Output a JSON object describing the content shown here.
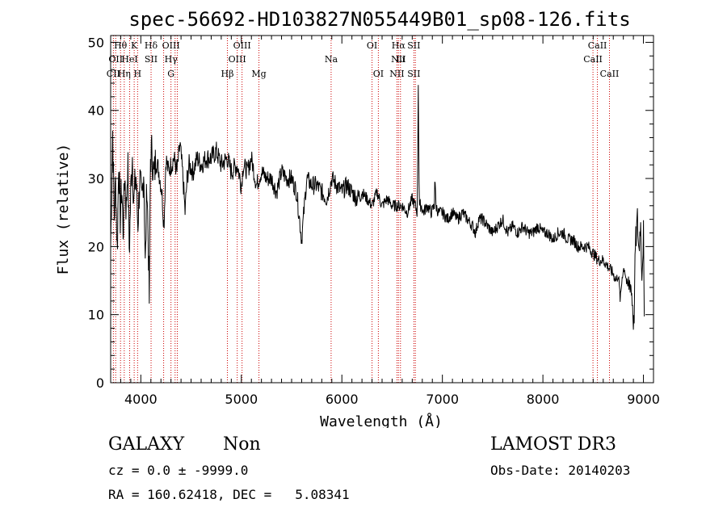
{
  "chart_data": {
    "type": "line",
    "title": "spec-56692-HD103827N055449B01_sp08-126.fits",
    "xlabel": "Wavelength (Å)",
    "ylabel": "Flux (relative)",
    "xlim": [
      3700,
      9100
    ],
    "ylim": [
      0,
      51
    ],
    "xticks": [
      4000,
      5000,
      6000,
      7000,
      8000,
      9000
    ],
    "yticks": [
      0,
      10,
      20,
      30,
      40,
      50
    ],
    "grid": false,
    "line_color": "#000000",
    "marker_color": "#cc0000",
    "series": [
      {
        "name": "spectrum",
        "anchors": [
          [
            3700,
            20
          ],
          [
            3720,
            37
          ],
          [
            3735,
            24
          ],
          [
            3750,
            30
          ],
          [
            3765,
            19
          ],
          [
            3780,
            33
          ],
          [
            3795,
            24
          ],
          [
            3810,
            29
          ],
          [
            3825,
            22
          ],
          [
            3840,
            31
          ],
          [
            3855,
            25
          ],
          [
            3870,
            33
          ],
          [
            3885,
            19
          ],
          [
            3900,
            28
          ],
          [
            3915,
            34
          ],
          [
            3930,
            26
          ],
          [
            3950,
            31
          ],
          [
            3970,
            23
          ],
          [
            3990,
            30
          ],
          [
            4010,
            26
          ],
          [
            4030,
            32
          ],
          [
            4045,
            16
          ],
          [
            4060,
            30
          ],
          [
            4075,
            20
          ],
          [
            4085,
            11
          ],
          [
            4095,
            33
          ],
          [
            4110,
            34
          ],
          [
            4130,
            30
          ],
          [
            4150,
            33
          ],
          [
            4180,
            31
          ],
          [
            4210,
            28
          ],
          [
            4230,
            23
          ],
          [
            4250,
            33
          ],
          [
            4275,
            31
          ],
          [
            4300,
            32
          ],
          [
            4330,
            33
          ],
          [
            4360,
            31
          ],
          [
            4390,
            35
          ],
          [
            4420,
            30
          ],
          [
            4440,
            25
          ],
          [
            4460,
            30
          ],
          [
            4480,
            32
          ],
          [
            4520,
            31
          ],
          [
            4560,
            33
          ],
          [
            4600,
            32
          ],
          [
            4650,
            33
          ],
          [
            4700,
            33
          ],
          [
            4750,
            34
          ],
          [
            4800,
            32
          ],
          [
            4860,
            33
          ],
          [
            4900,
            31
          ],
          [
            4960,
            32
          ],
          [
            5000,
            29
          ],
          [
            5020,
            32
          ],
          [
            5060,
            31
          ],
          [
            5100,
            33
          ],
          [
            5150,
            29
          ],
          [
            5200,
            31
          ],
          [
            5250,
            30
          ],
          [
            5300,
            30
          ],
          [
            5350,
            28
          ],
          [
            5400,
            31
          ],
          [
            5450,
            30
          ],
          [
            5500,
            30
          ],
          [
            5550,
            28
          ],
          [
            5600,
            21
          ],
          [
            5650,
            30
          ],
          [
            5700,
            29
          ],
          [
            5750,
            29
          ],
          [
            5800,
            28
          ],
          [
            5850,
            27
          ],
          [
            5900,
            30
          ],
          [
            5950,
            29
          ],
          [
            6000,
            28
          ],
          [
            6050,
            29
          ],
          [
            6100,
            28
          ],
          [
            6150,
            27
          ],
          [
            6200,
            28
          ],
          [
            6250,
            27
          ],
          [
            6300,
            26
          ],
          [
            6350,
            28
          ],
          [
            6400,
            26
          ],
          [
            6450,
            27
          ],
          [
            6500,
            26
          ],
          [
            6550,
            26
          ],
          [
            6600,
            26
          ],
          [
            6650,
            25
          ],
          [
            6700,
            27
          ],
          [
            6730,
            26
          ],
          [
            6750,
            25
          ],
          [
            6760,
            44
          ],
          [
            6770,
            26
          ],
          [
            6790,
            26
          ],
          [
            6810,
            25
          ],
          [
            6850,
            26
          ],
          [
            6890,
            25
          ],
          [
            6920,
            26
          ],
          [
            6925,
            31
          ],
          [
            6935,
            26
          ],
          [
            6960,
            25
          ],
          [
            7000,
            25
          ],
          [
            7050,
            24
          ],
          [
            7100,
            25
          ],
          [
            7150,
            24
          ],
          [
            7200,
            25
          ],
          [
            7250,
            24
          ],
          [
            7300,
            23
          ],
          [
            7330,
            22
          ],
          [
            7360,
            24
          ],
          [
            7400,
            24
          ],
          [
            7450,
            23
          ],
          [
            7500,
            22
          ],
          [
            7550,
            23
          ],
          [
            7600,
            24
          ],
          [
            7650,
            22
          ],
          [
            7700,
            23
          ],
          [
            7750,
            22
          ],
          [
            7800,
            23
          ],
          [
            7850,
            22
          ],
          [
            7900,
            22
          ],
          [
            7950,
            23
          ],
          [
            8000,
            22
          ],
          [
            8050,
            22
          ],
          [
            8100,
            21
          ],
          [
            8150,
            22
          ],
          [
            8200,
            22
          ],
          [
            8250,
            21
          ],
          [
            8300,
            21
          ],
          [
            8350,
            20
          ],
          [
            8400,
            20
          ],
          [
            8450,
            20
          ],
          [
            8500,
            19
          ],
          [
            8550,
            18
          ],
          [
            8600,
            18
          ],
          [
            8650,
            17
          ],
          [
            8700,
            16
          ],
          [
            8730,
            15
          ],
          [
            8750,
            16
          ],
          [
            8770,
            12
          ],
          [
            8790,
            16
          ],
          [
            8810,
            17
          ],
          [
            8840,
            14
          ],
          [
            8870,
            15
          ],
          [
            8890,
            12
          ],
          [
            8905,
            8
          ],
          [
            8920,
            20
          ],
          [
            8940,
            24
          ],
          [
            8955,
            19
          ],
          [
            8970,
            24
          ],
          [
            8985,
            16
          ],
          [
            9000,
            22
          ],
          [
            9010,
            4
          ]
        ]
      }
    ],
    "lines": [
      {
        "wl": 3727,
        "labels": [
          [
            "CII",
            3
          ]
        ]
      },
      {
        "wl": 3750,
        "labels": [
          [
            "OII",
            2
          ]
        ]
      },
      {
        "wl": 3798,
        "labels": [
          [
            "Hθ",
            1
          ]
        ]
      },
      {
        "wl": 3835,
        "labels": [
          [
            "Hη",
            3
          ]
        ]
      },
      {
        "wl": 3889,
        "labels": [
          [
            "HeI",
            2
          ]
        ]
      },
      {
        "wl": 3934,
        "labels": [
          [
            "K",
            1
          ]
        ]
      },
      {
        "wl": 3968,
        "labels": [
          [
            "H",
            3
          ]
        ]
      },
      {
        "wl": 4102,
        "labels": [
          [
            "Hδ",
            1
          ],
          [
            "SII",
            2
          ]
        ]
      },
      {
        "wl": 4227,
        "labels": []
      },
      {
        "wl": 4300,
        "labels": [
          [
            "OIII",
            1
          ],
          [
            "Hγ",
            2
          ],
          [
            "G",
            3
          ]
        ]
      },
      {
        "wl": 4341,
        "labels": []
      },
      {
        "wl": 4363,
        "labels": []
      },
      {
        "wl": 4861,
        "labels": [
          [
            "Hβ",
            3
          ]
        ]
      },
      {
        "wl": 4959,
        "labels": [
          [
            "OIII",
            2
          ]
        ]
      },
      {
        "wl": 5007,
        "labels": [
          [
            "OIII",
            1
          ]
        ]
      },
      {
        "wl": 5175,
        "labels": [
          [
            "Mg",
            3
          ]
        ]
      },
      {
        "wl": 5893,
        "labels": [
          [
            "Na",
            2
          ]
        ]
      },
      {
        "wl": 6300,
        "labels": [
          [
            "OI",
            1
          ]
        ]
      },
      {
        "wl": 6363,
        "labels": [
          [
            "OI",
            3
          ]
        ]
      },
      {
        "wl": 6548,
        "labels": [
          [
            "NII",
            3
          ]
        ]
      },
      {
        "wl": 6563,
        "labels": [
          [
            "Hα",
            1
          ],
          [
            "NII",
            2
          ]
        ]
      },
      {
        "wl": 6583,
        "labels": [
          [
            "Li",
            2
          ]
        ]
      },
      {
        "wl": 6716,
        "labels": [
          [
            "SII",
            1
          ],
          [
            "SII",
            3
          ]
        ]
      },
      {
        "wl": 6731,
        "labels": []
      },
      {
        "wl": 8498,
        "labels": [
          [
            "CaII",
            2
          ]
        ]
      },
      {
        "wl": 8542,
        "labels": [
          [
            "CaII",
            1
          ]
        ]
      },
      {
        "wl": 8662,
        "labels": [
          [
            "CaII",
            3
          ]
        ]
      }
    ]
  },
  "info": {
    "class": "GALAXY",
    "subclass": "Non",
    "survey": "LAMOST DR3",
    "cz": "cz = 0.0 ± -9999.0",
    "obs_date": "Obs-Date: 20140203",
    "radec": "RA = 160.62418, DEC =   5.08341"
  }
}
